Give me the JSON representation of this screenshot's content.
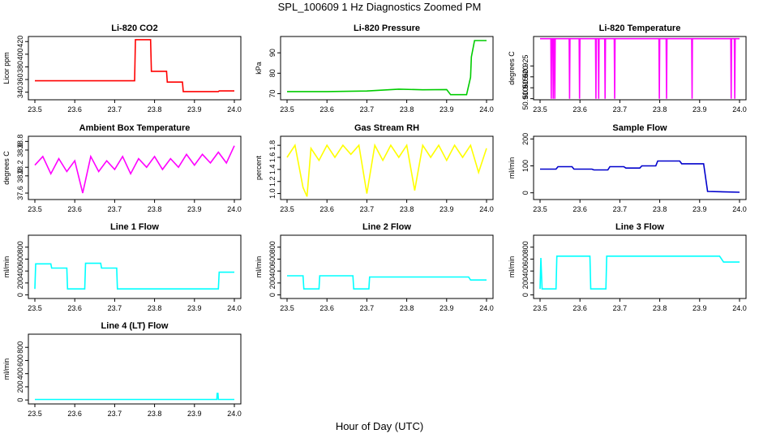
{
  "page": {
    "title": "SPL_100609  1 Hz Diagnostics Zoomed PM",
    "xlabel": "Hour of Day (UTC)"
  },
  "chart_data": [
    {
      "type": "line",
      "title": "Li-820 CO2",
      "ylabel": "Licor ppm",
      "color": "#ff0000",
      "xlim": [
        23.5,
        24.0
      ],
      "xticks": [
        "23.5",
        "23.6",
        "23.7",
        "23.8",
        "23.9",
        "24.0"
      ],
      "ylim": [
        328,
        428
      ],
      "yticks": [
        "340",
        "360",
        "380",
        "400",
        "420"
      ],
      "x": [
        23.5,
        23.75,
        23.752,
        23.79,
        23.792,
        23.83,
        23.832,
        23.87,
        23.872,
        23.96,
        23.962,
        24.0
      ],
      "y": [
        358,
        358,
        423,
        423,
        373,
        373,
        356,
        356,
        341,
        341,
        342,
        342
      ]
    },
    {
      "type": "line",
      "title": "Li-820 Pressure",
      "ylabel": "kPa",
      "color": "#00cc00",
      "xlim": [
        23.5,
        24.0
      ],
      "xticks": [
        "23.5",
        "23.6",
        "23.7",
        "23.8",
        "23.9",
        "24.0"
      ],
      "ylim": [
        67,
        98
      ],
      "yticks": [
        "70",
        "80",
        "90"
      ],
      "x": [
        23.5,
        23.6,
        23.7,
        23.78,
        23.84,
        23.9,
        23.91,
        23.95,
        23.96,
        23.962,
        23.97,
        24.0
      ],
      "y": [
        71,
        71,
        71.3,
        72.2,
        71.9,
        72,
        69.5,
        69.5,
        78,
        88,
        96,
        96
      ]
    },
    {
      "type": "line",
      "title": "Li-820 Temperature",
      "ylabel": "degrees C",
      "color": "#ff00ff",
      "xlim": [
        23.5,
        24.0
      ],
      "xticks": [
        "23.5",
        "23.6",
        "23.7",
        "23.8",
        "23.9",
        "24.0"
      ],
      "ylim": [
        50.9095,
        50.9385
      ],
      "yticks": [
        "50.910",
        "50.915",
        "50.920",
        "50.925"
      ],
      "x": [
        23.5,
        23.527,
        23.528,
        23.529,
        23.532,
        23.533,
        23.534,
        23.536,
        23.537,
        23.538,
        23.573,
        23.574,
        23.575,
        23.598,
        23.599,
        23.6,
        23.639,
        23.64,
        23.641,
        23.646,
        23.647,
        23.648,
        23.662,
        23.663,
        23.664,
        23.686,
        23.687,
        23.688,
        23.798,
        23.799,
        23.8,
        23.816,
        23.817,
        23.818,
        23.88,
        23.881,
        23.882,
        23.978,
        23.979,
        23.98,
        23.987,
        23.988,
        23.989,
        24.0
      ],
      "y": [
        50.9375,
        50.9375,
        50.91,
        50.9375,
        50.9375,
        50.91,
        50.9375,
        50.9375,
        50.91,
        50.9375,
        50.9375,
        50.91,
        50.9375,
        50.9375,
        50.91,
        50.9375,
        50.9375,
        50.91,
        50.9375,
        50.9375,
        50.91,
        50.9375,
        50.9375,
        50.91,
        50.9375,
        50.9375,
        50.91,
        50.9375,
        50.9375,
        50.91,
        50.9375,
        50.9375,
        50.91,
        50.9375,
        50.9375,
        50.91,
        50.9375,
        50.9375,
        50.91,
        50.9375,
        50.9375,
        50.91,
        50.9375,
        50.9375
      ]
    },
    {
      "type": "line",
      "title": "Ambient Box Temperature",
      "ylabel": "degrees C",
      "color": "#ff00ff",
      "xlim": [
        23.5,
        24.0
      ],
      "xticks": [
        "23.5",
        "23.6",
        "23.7",
        "23.8",
        "23.9",
        "24.0"
      ],
      "ylim": [
        37.45,
        38.92
      ],
      "yticks": [
        "37.6",
        "38.0",
        "38.2",
        "38.6",
        "38.8"
      ],
      "x": [
        23.5,
        23.52,
        23.54,
        23.56,
        23.58,
        23.6,
        23.62,
        23.64,
        23.66,
        23.68,
        23.7,
        23.72,
        23.74,
        23.76,
        23.78,
        23.8,
        23.82,
        23.84,
        23.86,
        23.88,
        23.9,
        23.92,
        23.94,
        23.96,
        23.98,
        24.0
      ],
      "y": [
        38.25,
        38.45,
        38.05,
        38.4,
        38.1,
        38.35,
        37.6,
        38.45,
        38.1,
        38.35,
        38.15,
        38.45,
        38.05,
        38.4,
        38.2,
        38.45,
        38.15,
        38.4,
        38.2,
        38.5,
        38.25,
        38.5,
        38.3,
        38.55,
        38.3,
        38.7
      ]
    },
    {
      "type": "line",
      "title": "Gas Stream RH",
      "ylabel": "percent",
      "color": "#ffff00",
      "xlim": [
        23.5,
        24.0
      ],
      "xticks": [
        "23.5",
        "23.6",
        "23.7",
        "23.8",
        "23.9",
        "24.0"
      ],
      "ylim": [
        0.9,
        1.95
      ],
      "yticks": [
        "1.0",
        "1.2",
        "1.4",
        "1.6",
        "1.8"
      ],
      "x": [
        23.5,
        23.52,
        23.54,
        23.55,
        23.56,
        23.58,
        23.6,
        23.62,
        23.64,
        23.66,
        23.68,
        23.7,
        23.72,
        23.74,
        23.76,
        23.78,
        23.8,
        23.82,
        23.84,
        23.86,
        23.88,
        23.9,
        23.92,
        23.94,
        23.96,
        23.98,
        24.0
      ],
      "y": [
        1.6,
        1.8,
        1.1,
        0.95,
        1.75,
        1.55,
        1.8,
        1.6,
        1.8,
        1.65,
        1.8,
        1.0,
        1.8,
        1.55,
        1.8,
        1.6,
        1.8,
        1.05,
        1.8,
        1.6,
        1.8,
        1.55,
        1.8,
        1.6,
        1.8,
        1.35,
        1.75
      ]
    },
    {
      "type": "line",
      "title": "Sample Flow",
      "ylabel": "ml/min",
      "color": "#0000cc",
      "xlim": [
        23.5,
        24.0
      ],
      "xticks": [
        "23.5",
        "23.6",
        "23.7",
        "23.8",
        "23.9",
        "24.0"
      ],
      "ylim": [
        -25,
        210
      ],
      "yticks": [
        "0",
        "100",
        "200"
      ],
      "x": [
        23.5,
        23.54,
        23.545,
        23.58,
        23.585,
        23.63,
        23.635,
        23.67,
        23.675,
        23.71,
        23.715,
        23.75,
        23.755,
        23.79,
        23.795,
        23.85,
        23.855,
        23.91,
        23.92,
        24.0
      ],
      "y": [
        88,
        88,
        97,
        97,
        88,
        88,
        85,
        85,
        97,
        97,
        92,
        92,
        100,
        100,
        118,
        118,
        108,
        108,
        5,
        2
      ]
    },
    {
      "type": "line",
      "title": "Line 1 Flow",
      "ylabel": "ml/min",
      "color": "#00ffff",
      "xlim": [
        23.5,
        24.0
      ],
      "xticks": [
        "23.5",
        "23.6",
        "23.7",
        "23.8",
        "23.9",
        "24.0"
      ],
      "ylim": [
        -60,
        1000
      ],
      "yticks": [
        "0",
        "200",
        "400",
        "600",
        "800"
      ],
      "x": [
        23.5,
        23.502,
        23.54,
        23.542,
        23.58,
        23.582,
        23.625,
        23.627,
        23.665,
        23.667,
        23.705,
        23.707,
        23.96,
        23.962,
        24.0
      ],
      "y": [
        100,
        520,
        520,
        450,
        450,
        100,
        100,
        530,
        530,
        450,
        450,
        100,
        100,
        380,
        380
      ]
    },
    {
      "type": "line",
      "title": "Line 2 Flow",
      "ylabel": "ml/min",
      "color": "#00ffff",
      "xlim": [
        23.5,
        24.0
      ],
      "xticks": [
        "23.5",
        "23.6",
        "23.7",
        "23.8",
        "23.9",
        "24.0"
      ],
      "ylim": [
        -60,
        1000
      ],
      "yticks": [
        "0",
        "200",
        "400",
        "600",
        "800"
      ],
      "x": [
        23.5,
        23.54,
        23.542,
        23.58,
        23.582,
        23.665,
        23.667,
        23.705,
        23.707,
        23.955,
        23.96,
        24.0
      ],
      "y": [
        320,
        320,
        100,
        100,
        320,
        320,
        100,
        100,
        300,
        300,
        250,
        250
      ]
    },
    {
      "type": "line",
      "title": "Line 3 Flow",
      "ylabel": "ml/min",
      "color": "#00ffff",
      "xlim": [
        23.5,
        24.0
      ],
      "xticks": [
        "23.5",
        "23.6",
        "23.7",
        "23.8",
        "23.9",
        "24.0"
      ],
      "ylim": [
        -60,
        1000
      ],
      "yticks": [
        "0",
        "200",
        "400",
        "600",
        "800"
      ],
      "x": [
        23.5,
        23.502,
        23.505,
        23.54,
        23.542,
        23.625,
        23.627,
        23.665,
        23.667,
        23.8,
        23.95,
        23.96,
        24.0
      ],
      "y": [
        100,
        620,
        100,
        100,
        650,
        650,
        100,
        100,
        650,
        650,
        650,
        550,
        550
      ]
    },
    {
      "type": "line",
      "title": "Line 4 (LT) Flow",
      "ylabel": "ml/min",
      "color": "#00ffff",
      "xlim": [
        23.5,
        24.0
      ],
      "xticks": [
        "23.5",
        "23.6",
        "23.7",
        "23.8",
        "23.9",
        "24.0"
      ],
      "ylim": [
        -60,
        1000
      ],
      "yticks": [
        "0",
        "200",
        "400",
        "600",
        "800"
      ],
      "x": [
        23.5,
        23.956,
        23.957,
        23.959,
        23.96,
        24.0
      ],
      "y": [
        8,
        8,
        100,
        100,
        8,
        8
      ]
    }
  ]
}
